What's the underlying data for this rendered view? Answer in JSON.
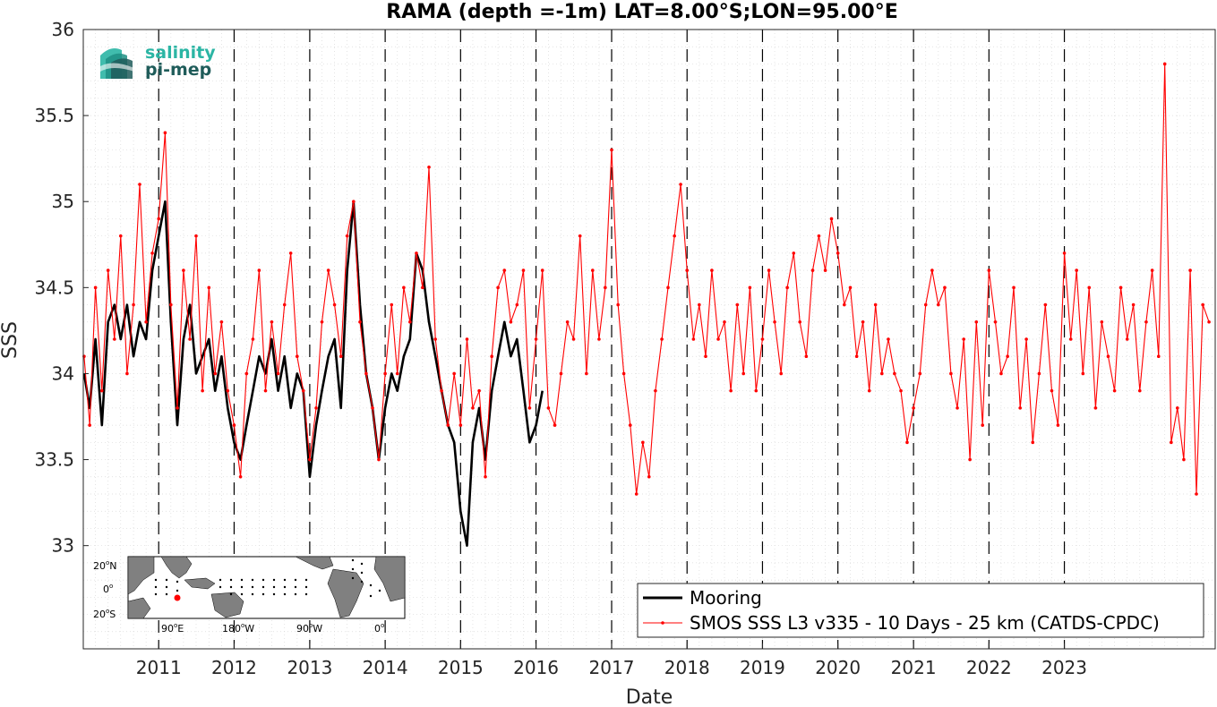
{
  "chart_data": {
    "type": "line",
    "title": "RAMA (depth =-1m) LAT=8.00°S;LON=95.00°E",
    "xlabel": "Date",
    "ylabel": "SSS",
    "xlim": [
      "2010-01-01",
      "2024-12-31"
    ],
    "ylim": [
      32.4,
      36
    ],
    "yticks": [
      33,
      33.5,
      34,
      34.5,
      35,
      35.5,
      36
    ],
    "xtick_labels": [
      "2011",
      "2012",
      "2013",
      "2014",
      "2015",
      "2016",
      "2017",
      "2018",
      "2019",
      "2020",
      "2021",
      "2022",
      "2023"
    ],
    "year_boundaries": [
      "2011-01-01",
      "2012-01-01",
      "2013-01-01",
      "2014-01-01",
      "2015-01-01",
      "2016-01-01",
      "2017-01-01",
      "2018-01-01",
      "2019-01-01",
      "2020-01-01",
      "2021-01-01",
      "2022-01-01",
      "2023-01-01"
    ],
    "grid": true,
    "legend_location": "bottom-right",
    "series": [
      {
        "name": "Mooring",
        "color": "#000000",
        "style": "thick-line",
        "points": [
          [
            "2010-01-05",
            34.0
          ],
          [
            "2010-02-01",
            33.8
          ],
          [
            "2010-03-01",
            34.2
          ],
          [
            "2010-04-01",
            33.7
          ],
          [
            "2010-05-01",
            34.3
          ],
          [
            "2010-06-01",
            34.4
          ],
          [
            "2010-07-01",
            34.2
          ],
          [
            "2010-08-01",
            34.4
          ],
          [
            "2010-09-01",
            34.1
          ],
          [
            "2010-10-01",
            34.3
          ],
          [
            "2010-11-01",
            34.2
          ],
          [
            "2010-12-01",
            34.6
          ],
          [
            "2011-01-01",
            34.8
          ],
          [
            "2011-02-01",
            35.0
          ],
          [
            "2011-03-01",
            34.3
          ],
          [
            "2011-04-01",
            33.7
          ],
          [
            "2011-05-01",
            34.2
          ],
          [
            "2011-06-01",
            34.4
          ],
          [
            "2011-07-01",
            34.0
          ],
          [
            "2011-08-01",
            34.1
          ],
          [
            "2011-09-01",
            34.2
          ],
          [
            "2011-10-01",
            33.9
          ],
          [
            "2011-11-01",
            34.1
          ],
          [
            "2011-12-01",
            33.8
          ],
          [
            "2012-01-01",
            33.6
          ],
          [
            "2012-02-01",
            33.5
          ],
          [
            "2012-03-01",
            33.7
          ],
          [
            "2012-04-01",
            33.9
          ],
          [
            "2012-05-01",
            34.1
          ],
          [
            "2012-06-01",
            34.0
          ],
          [
            "2012-07-01",
            34.2
          ],
          [
            "2012-08-01",
            33.9
          ],
          [
            "2012-09-01",
            34.1
          ],
          [
            "2012-10-01",
            33.8
          ],
          [
            "2012-11-01",
            34.0
          ],
          [
            "2012-12-01",
            33.9
          ],
          [
            "2013-01-01",
            33.4
          ],
          [
            "2013-02-01",
            33.7
          ],
          [
            "2013-03-01",
            33.9
          ],
          [
            "2013-04-01",
            34.1
          ],
          [
            "2013-05-01",
            34.2
          ],
          [
            "2013-06-01",
            33.8
          ],
          [
            "2013-07-01",
            34.6
          ],
          [
            "2013-08-01",
            35.0
          ],
          [
            "2013-09-01",
            34.4
          ],
          [
            "2013-10-01",
            34.0
          ],
          [
            "2013-11-01",
            33.8
          ],
          [
            "2013-12-01",
            33.5
          ],
          [
            "2014-01-01",
            33.8
          ],
          [
            "2014-02-01",
            34.0
          ],
          [
            "2014-03-01",
            33.9
          ],
          [
            "2014-04-01",
            34.1
          ],
          [
            "2014-05-01",
            34.2
          ],
          [
            "2014-06-01",
            34.7
          ],
          [
            "2014-07-01",
            34.6
          ],
          [
            "2014-08-01",
            34.3
          ],
          [
            "2014-09-01",
            34.1
          ],
          [
            "2014-10-01",
            33.9
          ],
          [
            "2014-11-01",
            33.7
          ],
          [
            "2014-12-01",
            33.6
          ],
          [
            "2015-01-01",
            33.2
          ],
          [
            "2015-02-01",
            33.0
          ],
          [
            "2015-03-01",
            33.6
          ],
          [
            "2015-04-01",
            33.8
          ],
          [
            "2015-05-01",
            33.5
          ],
          [
            "2015-06-01",
            33.9
          ],
          [
            "2015-07-01",
            34.1
          ],
          [
            "2015-08-01",
            34.3
          ],
          [
            "2015-09-01",
            34.1
          ],
          [
            "2015-10-01",
            34.2
          ],
          [
            "2015-11-01",
            33.9
          ],
          [
            "2015-12-01",
            33.6
          ],
          [
            "2016-01-01",
            33.7
          ],
          [
            "2016-02-01",
            33.9
          ]
        ]
      },
      {
        "name": "SMOS SSS L3 v335 - 10 Days - 25 km (CATDS-CPDC)",
        "color": "#ff0000",
        "style": "thin-line-markers",
        "points": [
          [
            "2010-01-05",
            34.1
          ],
          [
            "2010-02-01",
            33.7
          ],
          [
            "2010-03-01",
            34.5
          ],
          [
            "2010-04-01",
            33.9
          ],
          [
            "2010-05-01",
            34.6
          ],
          [
            "2010-06-01",
            34.2
          ],
          [
            "2010-07-01",
            34.8
          ],
          [
            "2010-08-01",
            34.0
          ],
          [
            "2010-09-01",
            34.4
          ],
          [
            "2010-10-01",
            35.1
          ],
          [
            "2010-11-01",
            34.3
          ],
          [
            "2010-12-01",
            34.7
          ],
          [
            "2011-01-01",
            34.9
          ],
          [
            "2011-02-01",
            35.4
          ],
          [
            "2011-03-01",
            34.4
          ],
          [
            "2011-04-01",
            33.8
          ],
          [
            "2011-05-01",
            34.6
          ],
          [
            "2011-06-01",
            34.2
          ],
          [
            "2011-07-01",
            34.8
          ],
          [
            "2011-08-01",
            33.9
          ],
          [
            "2011-09-01",
            34.5
          ],
          [
            "2011-10-01",
            34.0
          ],
          [
            "2011-11-01",
            34.3
          ],
          [
            "2011-12-01",
            33.9
          ],
          [
            "2012-01-01",
            33.7
          ],
          [
            "2012-02-01",
            33.4
          ],
          [
            "2012-03-01",
            34.0
          ],
          [
            "2012-04-01",
            34.2
          ],
          [
            "2012-05-01",
            34.6
          ],
          [
            "2012-06-01",
            33.9
          ],
          [
            "2012-07-01",
            34.3
          ],
          [
            "2012-08-01",
            34.0
          ],
          [
            "2012-09-01",
            34.4
          ],
          [
            "2012-10-01",
            34.7
          ],
          [
            "2012-11-01",
            34.1
          ],
          [
            "2012-12-01",
            33.9
          ],
          [
            "2013-01-01",
            33.5
          ],
          [
            "2013-02-01",
            33.8
          ],
          [
            "2013-03-01",
            34.3
          ],
          [
            "2013-04-01",
            34.6
          ],
          [
            "2013-05-01",
            34.4
          ],
          [
            "2013-06-01",
            34.1
          ],
          [
            "2013-07-01",
            34.8
          ],
          [
            "2013-08-01",
            35.0
          ],
          [
            "2013-09-01",
            34.3
          ],
          [
            "2013-10-01",
            34.0
          ],
          [
            "2013-11-01",
            33.8
          ],
          [
            "2013-12-01",
            33.5
          ],
          [
            "2014-01-01",
            34.0
          ],
          [
            "2014-02-01",
            34.4
          ],
          [
            "2014-03-01",
            34.0
          ],
          [
            "2014-04-01",
            34.5
          ],
          [
            "2014-05-01",
            34.3
          ],
          [
            "2014-06-01",
            34.7
          ],
          [
            "2014-07-01",
            34.5
          ],
          [
            "2014-08-01",
            35.2
          ],
          [
            "2014-09-01",
            34.2
          ],
          [
            "2014-10-01",
            33.9
          ],
          [
            "2014-11-01",
            33.7
          ],
          [
            "2014-12-01",
            34.0
          ],
          [
            "2015-01-01",
            33.7
          ],
          [
            "2015-02-01",
            34.2
          ],
          [
            "2015-03-01",
            33.8
          ],
          [
            "2015-04-01",
            33.9
          ],
          [
            "2015-05-01",
            33.4
          ],
          [
            "2015-06-01",
            34.1
          ],
          [
            "2015-07-01",
            34.5
          ],
          [
            "2015-08-01",
            34.6
          ],
          [
            "2015-09-01",
            34.3
          ],
          [
            "2015-10-01",
            34.4
          ],
          [
            "2015-11-01",
            34.6
          ],
          [
            "2015-12-01",
            33.8
          ],
          [
            "2016-01-01",
            34.2
          ],
          [
            "2016-02-01",
            34.6
          ],
          [
            "2016-03-01",
            33.8
          ],
          [
            "2016-04-01",
            33.7
          ],
          [
            "2016-05-01",
            34.0
          ],
          [
            "2016-06-01",
            34.3
          ],
          [
            "2016-07-01",
            34.2
          ],
          [
            "2016-08-01",
            34.8
          ],
          [
            "2016-09-01",
            34.0
          ],
          [
            "2016-10-01",
            34.6
          ],
          [
            "2016-11-01",
            34.2
          ],
          [
            "2016-12-01",
            34.5
          ],
          [
            "2017-01-01",
            35.3
          ],
          [
            "2017-02-01",
            34.4
          ],
          [
            "2017-03-01",
            34.0
          ],
          [
            "2017-04-01",
            33.7
          ],
          [
            "2017-05-01",
            33.3
          ],
          [
            "2017-06-01",
            33.6
          ],
          [
            "2017-07-01",
            33.4
          ],
          [
            "2017-08-01",
            33.9
          ],
          [
            "2017-09-01",
            34.2
          ],
          [
            "2017-10-01",
            34.5
          ],
          [
            "2017-11-01",
            34.8
          ],
          [
            "2017-12-01",
            35.1
          ],
          [
            "2018-01-01",
            34.6
          ],
          [
            "2018-02-01",
            34.2
          ],
          [
            "2018-03-01",
            34.4
          ],
          [
            "2018-04-01",
            34.1
          ],
          [
            "2018-05-01",
            34.6
          ],
          [
            "2018-06-01",
            34.2
          ],
          [
            "2018-07-01",
            34.3
          ],
          [
            "2018-08-01",
            33.9
          ],
          [
            "2018-09-01",
            34.4
          ],
          [
            "2018-10-01",
            34.0
          ],
          [
            "2018-11-01",
            34.5
          ],
          [
            "2018-12-01",
            33.9
          ],
          [
            "2019-01-01",
            34.2
          ],
          [
            "2019-02-01",
            34.6
          ],
          [
            "2019-03-01",
            34.3
          ],
          [
            "2019-04-01",
            34.0
          ],
          [
            "2019-05-01",
            34.5
          ],
          [
            "2019-06-01",
            34.7
          ],
          [
            "2019-07-01",
            34.3
          ],
          [
            "2019-08-01",
            34.1
          ],
          [
            "2019-09-01",
            34.6
          ],
          [
            "2019-10-01",
            34.8
          ],
          [
            "2019-11-01",
            34.6
          ],
          [
            "2019-12-01",
            34.9
          ],
          [
            "2020-01-01",
            34.7
          ],
          [
            "2020-02-01",
            34.4
          ],
          [
            "2020-03-01",
            34.5
          ],
          [
            "2020-04-01",
            34.1
          ],
          [
            "2020-05-01",
            34.3
          ],
          [
            "2020-06-01",
            33.9
          ],
          [
            "2020-07-01",
            34.4
          ],
          [
            "2020-08-01",
            34.0
          ],
          [
            "2020-09-01",
            34.2
          ],
          [
            "2020-10-01",
            34.0
          ],
          [
            "2020-11-01",
            33.9
          ],
          [
            "2020-12-01",
            33.6
          ],
          [
            "2021-01-01",
            33.8
          ],
          [
            "2021-02-01",
            34.0
          ],
          [
            "2021-03-01",
            34.4
          ],
          [
            "2021-04-01",
            34.6
          ],
          [
            "2021-05-01",
            34.4
          ],
          [
            "2021-06-01",
            34.5
          ],
          [
            "2021-07-01",
            34.0
          ],
          [
            "2021-08-01",
            33.8
          ],
          [
            "2021-09-01",
            34.2
          ],
          [
            "2021-10-01",
            33.5
          ],
          [
            "2021-11-01",
            34.3
          ],
          [
            "2021-12-01",
            33.7
          ],
          [
            "2022-01-01",
            34.6
          ],
          [
            "2022-02-01",
            34.3
          ],
          [
            "2022-03-01",
            34.0
          ],
          [
            "2022-04-01",
            34.1
          ],
          [
            "2022-05-01",
            34.5
          ],
          [
            "2022-06-01",
            33.8
          ],
          [
            "2022-07-01",
            34.2
          ],
          [
            "2022-08-01",
            33.6
          ],
          [
            "2022-09-01",
            34.0
          ],
          [
            "2022-10-01",
            34.4
          ],
          [
            "2022-11-01",
            33.9
          ],
          [
            "2022-12-01",
            33.7
          ],
          [
            "2023-01-01",
            34.7
          ],
          [
            "2023-02-01",
            34.2
          ],
          [
            "2023-03-01",
            34.6
          ],
          [
            "2023-04-01",
            34.0
          ],
          [
            "2023-05-01",
            34.5
          ],
          [
            "2023-06-01",
            33.8
          ],
          [
            "2023-07-01",
            34.3
          ],
          [
            "2023-08-01",
            34.1
          ],
          [
            "2023-09-01",
            33.9
          ],
          [
            "2023-10-01",
            34.5
          ],
          [
            "2023-11-01",
            34.2
          ],
          [
            "2023-12-01",
            34.4
          ],
          [
            "2024-01-01",
            33.9
          ],
          [
            "2024-02-01",
            34.3
          ],
          [
            "2024-03-01",
            34.6
          ],
          [
            "2024-04-01",
            34.1
          ],
          [
            "2024-05-01",
            35.8
          ],
          [
            "2024-06-01",
            33.6
          ],
          [
            "2024-07-01",
            33.8
          ],
          [
            "2024-08-01",
            33.5
          ],
          [
            "2024-09-01",
            34.6
          ],
          [
            "2024-10-01",
            33.3
          ],
          [
            "2024-11-01",
            34.4
          ],
          [
            "2024-12-01",
            34.3
          ]
        ]
      }
    ]
  },
  "logo": {
    "line1": "salinity",
    "line2": "pi-mep",
    "color1": "#2bb5a4",
    "color2": "#1f5c5a"
  },
  "inset_map": {
    "lat_labels": [
      "20",
      "0",
      "20"
    ],
    "lat_suffixes": [
      "N",
      "",
      "S"
    ],
    "lon_labels": [
      "90",
      "180",
      "90",
      "0"
    ],
    "lon_suffixes": [
      "E",
      "W",
      "W",
      ""
    ],
    "degree": "o",
    "marker_color": "#ff0000"
  }
}
